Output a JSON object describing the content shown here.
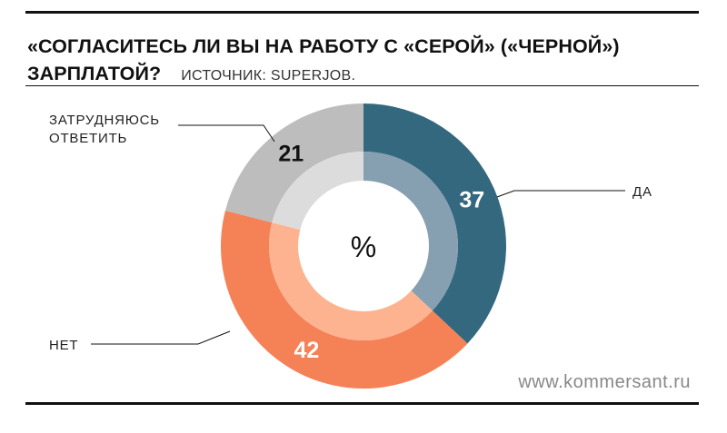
{
  "header": {
    "title": "«Согласитесь ли вы на работу с «серой» («черной») зарплатой?",
    "source": "Источник: SuperJob."
  },
  "footer": {
    "site": "www.kommersant.ru"
  },
  "chart_data": {
    "type": "pie",
    "variant": "donut",
    "center_label": "%",
    "slices": [
      {
        "label": "Да",
        "value": 37,
        "value_label": "37",
        "color": "#34687f",
        "inner_color": "#869fb1",
        "text_color": "#ffffff"
      },
      {
        "label": "Нет",
        "value": 42,
        "value_label": "42",
        "color": "#f58257",
        "inner_color": "#fdb38f",
        "text_color": "#ffffff"
      },
      {
        "label": "Затрудняюсь ответить",
        "label_lines": [
          "Затрудняюсь",
          "ответить"
        ],
        "value": 21,
        "value_label": "21",
        "color": "#bdbdbd",
        "inner_color": "#dcdcdc",
        "text_color": "#111111"
      }
    ]
  }
}
